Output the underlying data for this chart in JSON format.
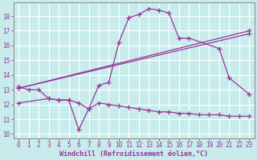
{
  "xlabel": "Windchill (Refroidissement éolien,°C)",
  "bg_color": "#c8ecec",
  "grid_color": "#ffffff",
  "line_color": "#993399",
  "xlim": [
    -0.5,
    23.5
  ],
  "ylim": [
    9.7,
    18.9
  ],
  "xticks": [
    0,
    1,
    2,
    3,
    4,
    5,
    6,
    7,
    8,
    9,
    10,
    11,
    12,
    13,
    14,
    15,
    16,
    17,
    18,
    19,
    20,
    21,
    22,
    23
  ],
  "yticks": [
    10,
    11,
    12,
    13,
    14,
    15,
    16,
    17,
    18
  ],
  "curve1_x": [
    0,
    1,
    2,
    3,
    4,
    5,
    6,
    7,
    8,
    9,
    10,
    11,
    12,
    13,
    14,
    15,
    16,
    17,
    20,
    21,
    23
  ],
  "curve1_y": [
    13.2,
    13.0,
    13.0,
    12.4,
    12.3,
    12.3,
    10.3,
    11.7,
    13.3,
    13.5,
    16.2,
    17.9,
    18.1,
    18.5,
    18.4,
    18.2,
    16.5,
    16.5,
    15.8,
    13.8,
    12.7
  ],
  "line2_x": [
    0,
    23
  ],
  "line2_y": [
    13.1,
    16.8
  ],
  "line3_x": [
    0,
    23
  ],
  "line3_y": [
    13.1,
    17.0
  ],
  "line4_x": [
    0,
    3,
    4,
    5,
    6,
    7,
    8,
    9,
    10,
    11,
    12,
    13,
    14,
    15,
    16,
    17,
    18,
    19,
    20,
    21,
    22,
    23
  ],
  "line4_y": [
    12.1,
    12.4,
    12.3,
    12.3,
    12.1,
    11.7,
    12.1,
    12.0,
    11.9,
    11.8,
    11.7,
    11.6,
    11.5,
    11.5,
    11.4,
    11.4,
    11.3,
    11.3,
    11.3,
    11.2,
    11.2,
    11.2
  ],
  "tick_fontsize": 5.5,
  "xlabel_fontsize": 6.0
}
